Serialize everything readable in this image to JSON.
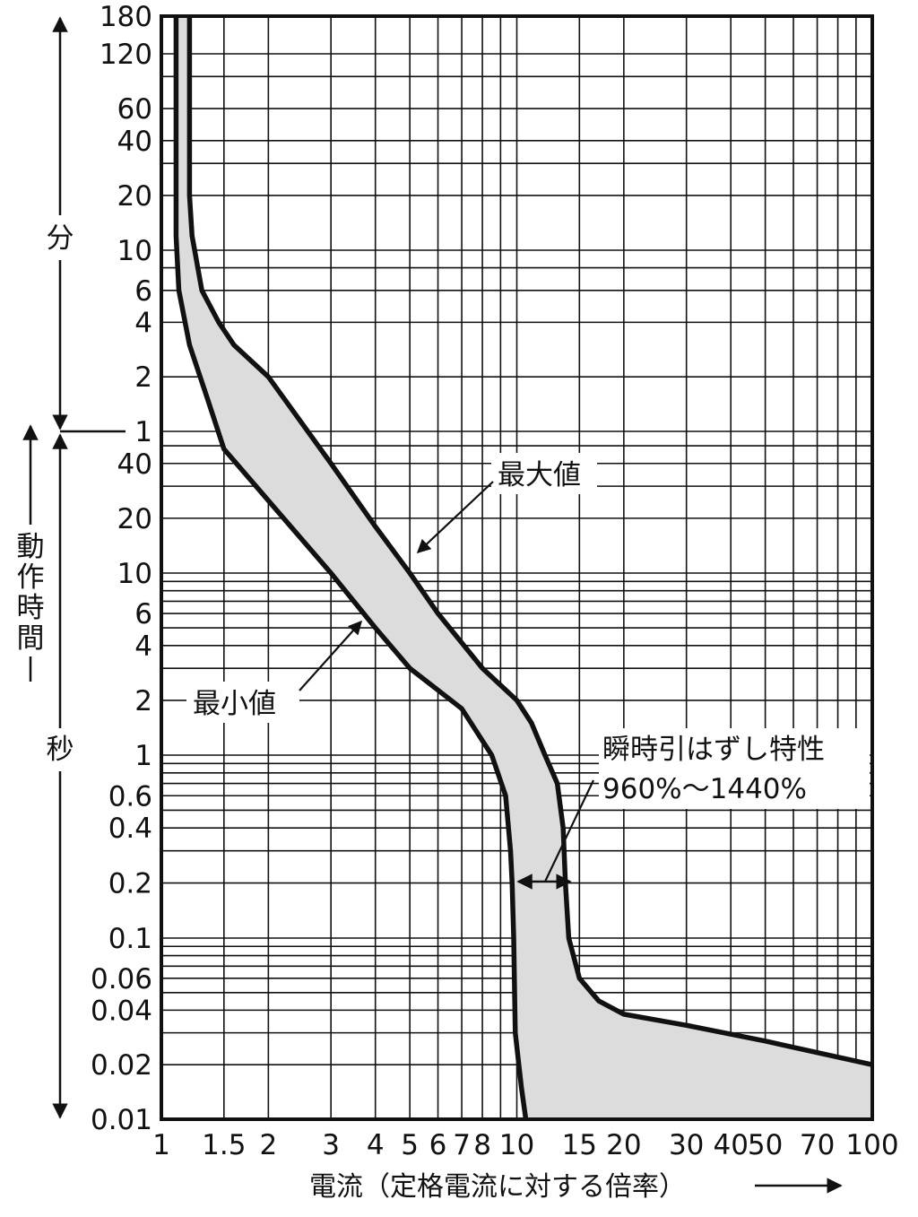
{
  "chart_data": {
    "type": "line",
    "xlabel": "電流（定格電流に対する倍率）",
    "ylabel": "動作時間",
    "x_scale": "log",
    "xlim": [
      1,
      100
    ],
    "x_gridlines": [
      1,
      1.5,
      2,
      3,
      4,
      5,
      6,
      7,
      8,
      9,
      10,
      15,
      20,
      30,
      40,
      50,
      60,
      70,
      80,
      90,
      100
    ],
    "x_tick_labels": [
      {
        "value": 1,
        "label": "1"
      },
      {
        "value": 1.5,
        "label": "1.5"
      },
      {
        "value": 2,
        "label": "2"
      },
      {
        "value": 3,
        "label": "3"
      },
      {
        "value": 4,
        "label": "4"
      },
      {
        "value": 5,
        "label": "5"
      },
      {
        "value": 6,
        "label": "6"
      },
      {
        "value": 7,
        "label": "7"
      },
      {
        "value": 8,
        "label": "8"
      },
      {
        "value": 10,
        "label": "10"
      },
      {
        "value": 15,
        "label": "15"
      },
      {
        "value": 20,
        "label": "20"
      },
      {
        "value": 30,
        "label": "30"
      },
      {
        "value": 40,
        "label": "40"
      },
      {
        "value": 50,
        "label": "50"
      },
      {
        "value": 70,
        "label": "70"
      },
      {
        "value": 100,
        "label": "100"
      }
    ],
    "y_scale": "log",
    "y_unit": "seconds",
    "ylim": [
      0.01,
      10800
    ],
    "y_gridlines": [
      0.01,
      0.02,
      0.03,
      0.04,
      0.05,
      0.06,
      0.07,
      0.08,
      0.09,
      0.1,
      0.2,
      0.3,
      0.4,
      0.5,
      0.6,
      0.7,
      0.8,
      0.9,
      1,
      2,
      3,
      4,
      5,
      6,
      7,
      8,
      9,
      10,
      20,
      30,
      40,
      50,
      60,
      120,
      240,
      360,
      480,
      600,
      1200,
      1800,
      2400,
      3600,
      5400,
      7200,
      10800
    ],
    "y_tick_labels": [
      {
        "value": 0.01,
        "label": "0.01"
      },
      {
        "value": 0.02,
        "label": "0.02"
      },
      {
        "value": 0.04,
        "label": "0.04"
      },
      {
        "value": 0.06,
        "label": "0.06"
      },
      {
        "value": 0.1,
        "label": "0.1"
      },
      {
        "value": 0.2,
        "label": "0.2"
      },
      {
        "value": 0.4,
        "label": "0.4"
      },
      {
        "value": 0.6,
        "label": "0.6"
      },
      {
        "value": 1,
        "label": "1"
      },
      {
        "value": 2,
        "label": "2"
      },
      {
        "value": 4,
        "label": "4"
      },
      {
        "value": 6,
        "label": "6"
      },
      {
        "value": 10,
        "label": "10"
      },
      {
        "value": 20,
        "label": "20"
      },
      {
        "value": 40,
        "label": "40"
      },
      {
        "value": 60,
        "label": "1"
      },
      {
        "value": 120,
        "label": "2"
      },
      {
        "value": 240,
        "label": "4"
      },
      {
        "value": 360,
        "label": "6"
      },
      {
        "value": 600,
        "label": "10"
      },
      {
        "value": 1200,
        "label": "20"
      },
      {
        "value": 2400,
        "label": "40"
      },
      {
        "value": 3600,
        "label": "60"
      },
      {
        "value": 7200,
        "label": "120"
      },
      {
        "value": 10800,
        "label": "180"
      }
    ],
    "unit_labels": {
      "minutes": "分",
      "seconds": "秒"
    },
    "series": [
      {
        "name": "最大値",
        "x": [
          1.2,
          1.2,
          1.22,
          1.3,
          1.45,
          1.6,
          2.0,
          3.0,
          4.0,
          5.0,
          6.0,
          8.0,
          10.0,
          11.0,
          12.0,
          13.0,
          13.5,
          13.7,
          14.0,
          15.0,
          17.0,
          20.0,
          30.0,
          50.0,
          100.0
        ],
        "y": [
          10800,
          1200,
          720,
          360,
          240,
          180,
          120,
          40,
          18,
          10,
          6,
          3,
          2,
          1.5,
          1.0,
          0.7,
          0.4,
          0.2,
          0.1,
          0.06,
          0.045,
          0.038,
          0.033,
          0.027,
          0.02
        ]
      },
      {
        "name": "最小値",
        "x": [
          1.1,
          1.1,
          1.12,
          1.2,
          1.35,
          1.5,
          2.0,
          3.0,
          4.0,
          5.0,
          7.0,
          8.5,
          9.3,
          9.6,
          9.7,
          9.8,
          9.9,
          10.3,
          10.6
        ],
        "y": [
          10800,
          720,
          360,
          180,
          90,
          48,
          25,
          10,
          5,
          3,
          1.8,
          1.0,
          0.6,
          0.3,
          0.2,
          0.1,
          0.03,
          0.015,
          0.01
        ]
      }
    ],
    "annotations": [
      {
        "text": "最大値",
        "x": 5,
        "y": 10
      },
      {
        "text": "最小値",
        "x": 4,
        "y": 5
      },
      {
        "text": "瞬時引はずし特性",
        "x": 12,
        "y": 0.2
      },
      {
        "text": "960%～1440%",
        "x": 12,
        "y": 0.2
      }
    ]
  }
}
